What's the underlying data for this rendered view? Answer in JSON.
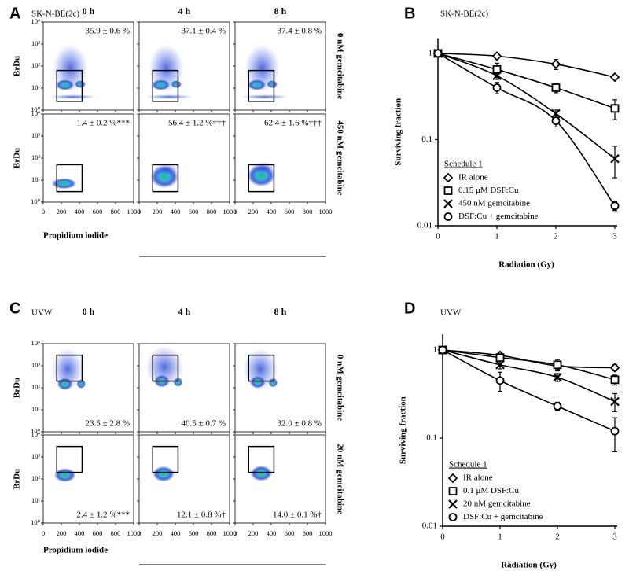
{
  "chart_data": [
    {
      "type": "flow",
      "panel": "A",
      "cell_line": "SK-N-BE(2c)",
      "columns": [
        "0 h",
        "4 h",
        "8 h"
      ],
      "rows": [
        "0 nM gemcitabine",
        "450 nM gemcitabine"
      ],
      "ylabel": "BrDu",
      "xlabel": "Propidium iodide",
      "xlim": [
        0,
        1000
      ],
      "xticks": [
        0,
        200,
        400,
        600,
        800,
        1000
      ],
      "ylim": [
        1,
        10000
      ],
      "log_y": true,
      "yticks": [
        {
          "value": 1,
          "label": "10⁰"
        },
        {
          "value": 10,
          "label": "10¹"
        },
        {
          "value": 100,
          "label": "10²"
        },
        {
          "value": 1000,
          "label": "10³"
        },
        {
          "value": 10000,
          "label": "10⁴"
        }
      ],
      "percentages": [
        [
          "35.9 ± 0.6 %",
          "37.1 ± 0.4 %",
          "37.4 ± 0.8 %"
        ],
        [
          "1.4 ± 0.2 %***",
          "56.4 ± 1.2 %†††",
          "62.4 ± 1.6 %†††"
        ]
      ]
    },
    {
      "type": "line",
      "panel": "B",
      "cell_line": "SK-N-BE(2c)",
      "xlabel": "Radiation (Gy)",
      "ylabel": "Surviving fraction",
      "x": [
        0,
        1,
        2,
        3
      ],
      "xlim": [
        0,
        3
      ],
      "xticks": [
        0,
        1,
        2,
        3
      ],
      "ylim": [
        0.01,
        1.5
      ],
      "yticks": [
        0.01,
        0.1,
        1
      ],
      "log_y": true,
      "legend_title": "Schedule 1",
      "legend": "lower left",
      "series": [
        {
          "name": "IR alone",
          "marker": "diamond",
          "color": "#000000",
          "values": [
            1,
            0.93,
            0.75,
            0.53
          ],
          "errors": [
            0,
            0.04,
            0.1,
            0.03
          ]
        },
        {
          "name": "0.15 μM DSF:Cu",
          "marker": "square",
          "color": "#000000",
          "values": [
            1,
            0.65,
            0.4,
            0.23
          ],
          "errors": [
            0,
            0.12,
            0.05,
            0.06
          ]
        },
        {
          "name": "450 nM gemcitabine",
          "marker": "x",
          "color": "#000000",
          "values": [
            1,
            0.55,
            0.2,
            0.06
          ],
          "errors": [
            0,
            0.05,
            0.02,
            0.024
          ]
        },
        {
          "name": "DSF:Cu + gemcitabine",
          "marker": "circle",
          "color": "#000000",
          "values": [
            1,
            0.4,
            0.165,
            0.017
          ],
          "errors": [
            0,
            0.06,
            0.025,
            0.002
          ]
        }
      ]
    },
    {
      "type": "flow",
      "panel": "C",
      "cell_line": "UVW",
      "columns": [
        "0 h",
        "4 h",
        "8 h"
      ],
      "rows": [
        "0 nM gemcitabine",
        "20 nM gemcitabine"
      ],
      "ylabel": "BrDu",
      "xlabel": "Propidium iodide",
      "xlim": [
        0,
        1000
      ],
      "xticks": [
        0,
        200,
        400,
        600,
        800,
        1000
      ],
      "ylim": [
        1,
        10000
      ],
      "log_y": true,
      "yticks": [
        {
          "value": 1,
          "label": "10⁰"
        },
        {
          "value": 10,
          "label": "10¹"
        },
        {
          "value": 100,
          "label": "10²"
        },
        {
          "value": 1000,
          "label": "10³"
        },
        {
          "value": 10000,
          "label": "10⁴"
        }
      ],
      "percentages": [
        [
          "23.5 ± 2.8 %",
          "40.5 ± 0.7 %",
          "32.0 ± 0.8 %"
        ],
        [
          "2.4 ± 1.2 %***",
          "12.1 ± 0.8 %†",
          "14.0 ± 0.1 %†"
        ]
      ]
    },
    {
      "type": "line",
      "panel": "D",
      "cell_line": "UVW",
      "xlabel": "Radiation (Gy)",
      "ylabel": "Surviving fraction",
      "x": [
        0,
        1,
        2,
        3
      ],
      "xlim": [
        0,
        3
      ],
      "xticks": [
        0,
        1,
        2,
        3
      ],
      "ylim": [
        0.01,
        1.5
      ],
      "yticks": [
        0.01,
        0.1,
        1
      ],
      "log_y": true,
      "legend_title": "Schedule 1",
      "legend": "lower left",
      "series": [
        {
          "name": "IR alone",
          "marker": "diamond",
          "color": "#000000",
          "values": [
            1,
            0.87,
            0.66,
            0.63
          ],
          "errors": [
            0,
            0.04,
            0.06,
            0.05
          ]
        },
        {
          "name": "0.1 μM DSF:Cu",
          "marker": "square",
          "color": "#000000",
          "values": [
            1,
            0.82,
            0.68,
            0.46
          ],
          "errors": [
            0,
            0.08,
            0.1,
            0.06
          ]
        },
        {
          "name": "20 nM gemcitabine",
          "marker": "x",
          "color": "#000000",
          "values": [
            1,
            0.68,
            0.49,
            0.26
          ],
          "errors": [
            0,
            0.07,
            0.05,
            0.06
          ]
        },
        {
          "name": "DSF:Cu + gemcitabine",
          "marker": "circle",
          "color": "#000000",
          "values": [
            1,
            0.45,
            0.23,
            0.12
          ],
          "errors": [
            0,
            0.11,
            0.025,
            0.05
          ]
        }
      ]
    }
  ]
}
